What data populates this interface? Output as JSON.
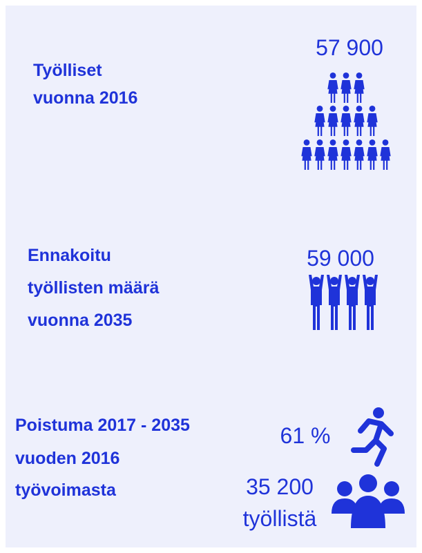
{
  "sections": [
    {
      "label": [
        "Työlliset",
        "vuonna 2016"
      ],
      "value": "57 900"
    },
    {
      "label": [
        "Ennakoitu",
        "työllisten määrä",
        "vuonna 2035"
      ],
      "value": "59 000"
    },
    {
      "label": [
        "Poistuma 2017 - 2035",
        "vuoden 2016",
        "työvoimasta"
      ],
      "share": "61 %",
      "count": "35 200",
      "count_unit": "työllistä"
    }
  ]
}
